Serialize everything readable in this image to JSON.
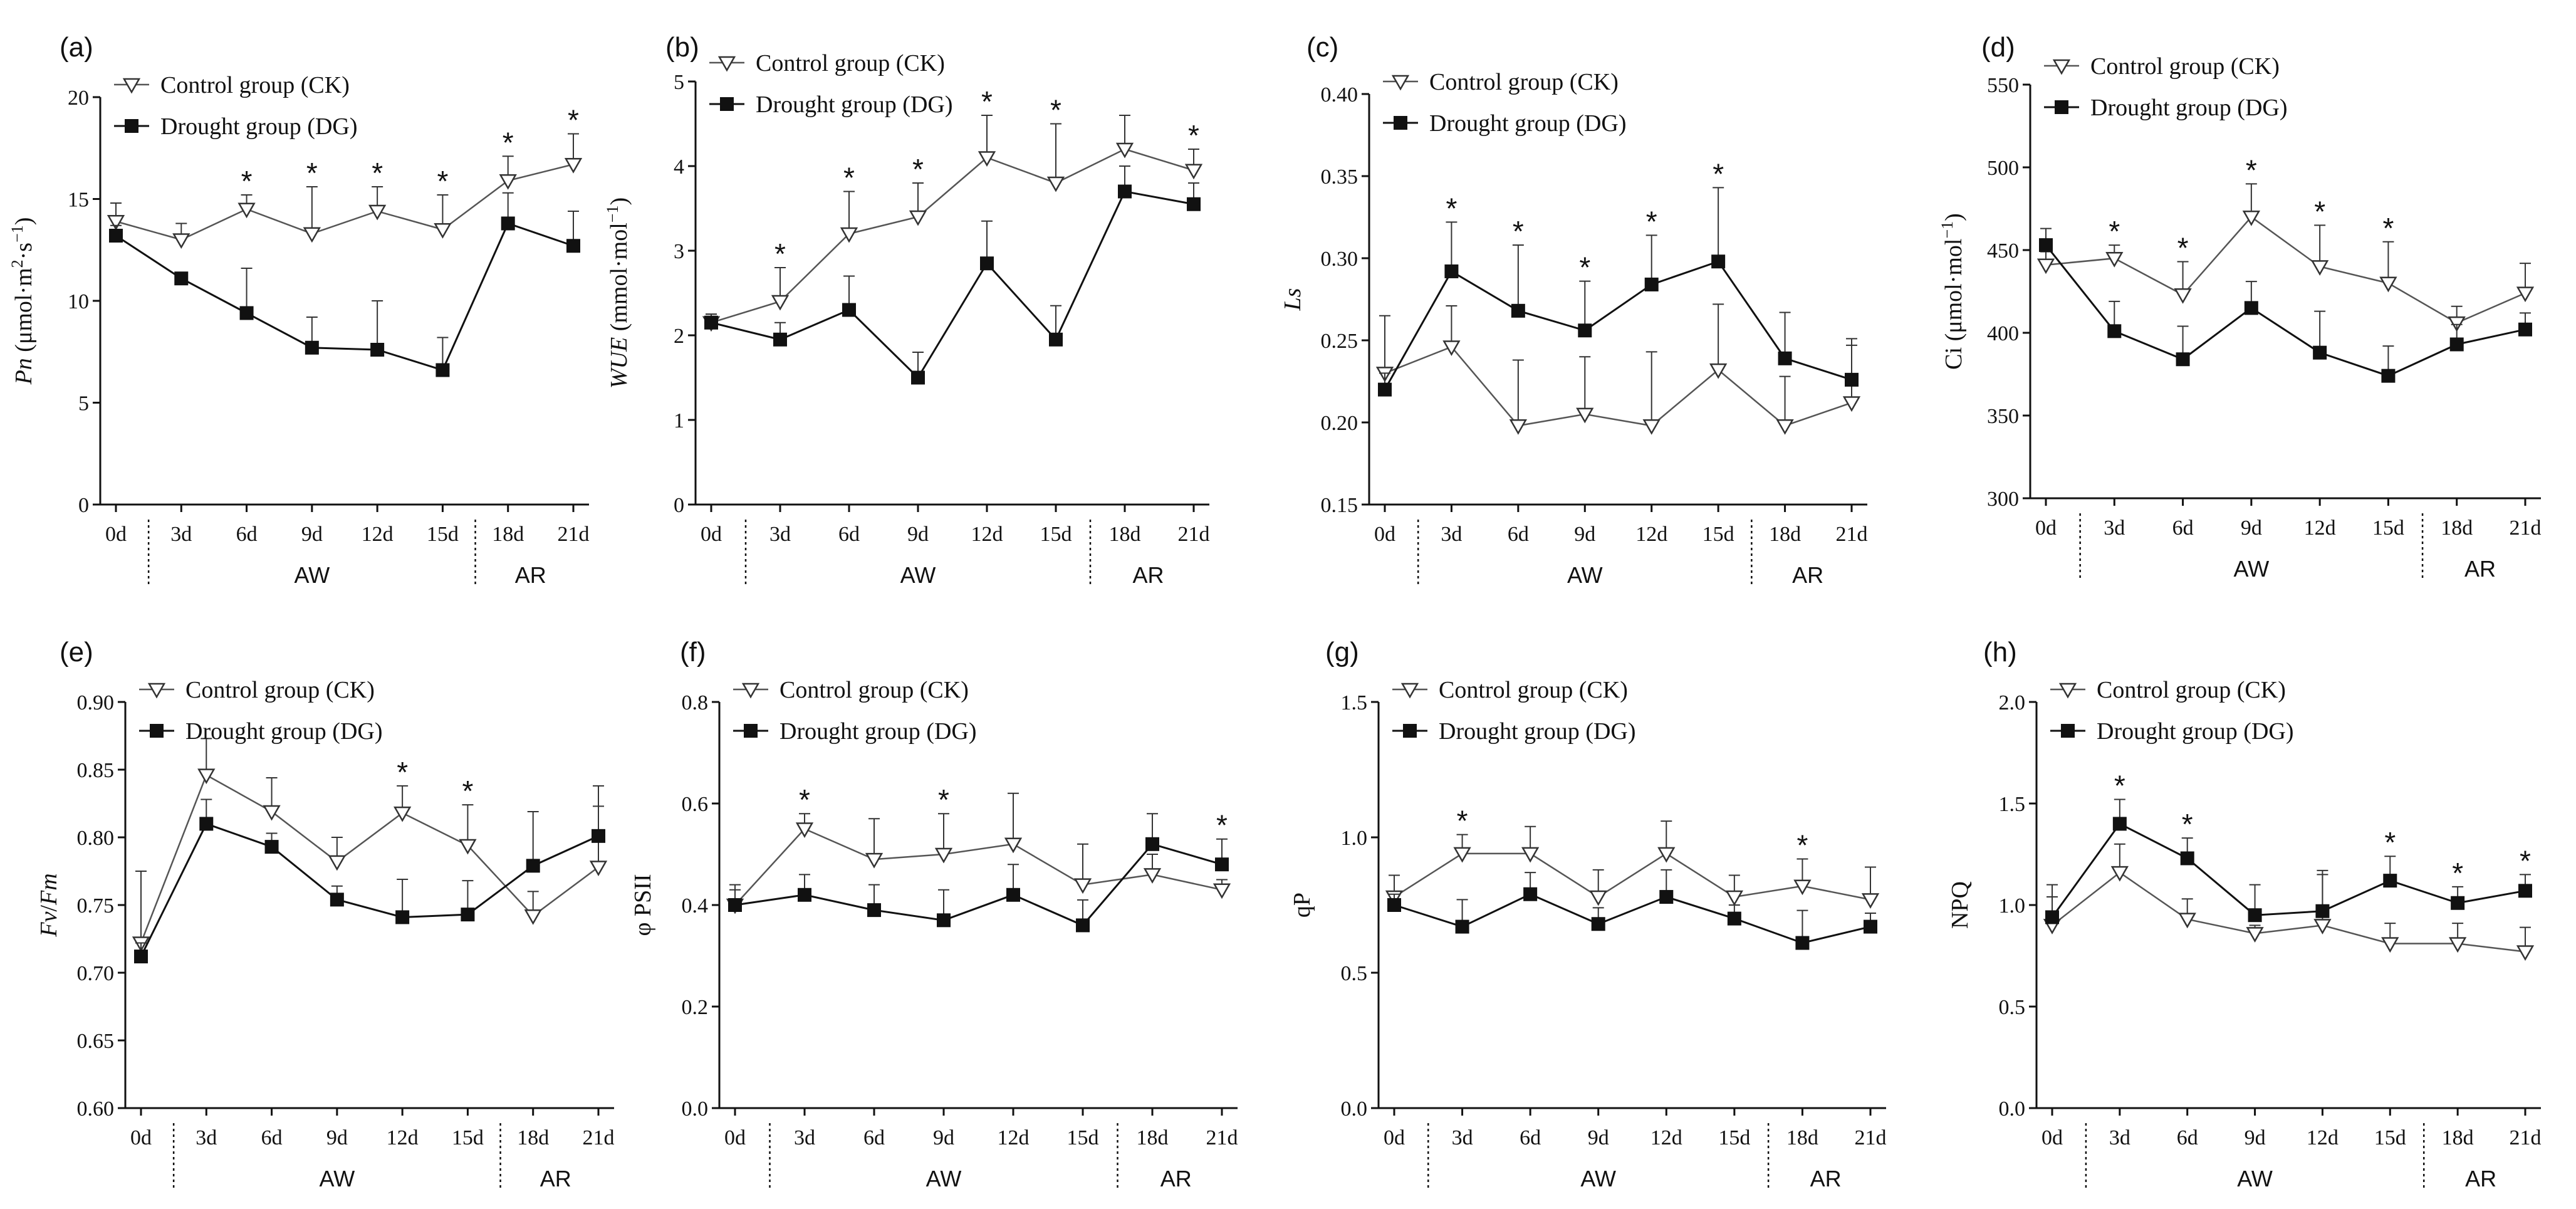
{
  "chart_data": [
    {
      "type": "line",
      "panel": "(a)",
      "ylabel_parts": [
        "Pn",
        " (μmol·m",
        "2",
        "·s",
        "−1",
        ")"
      ],
      "ylabel_italic": [
        true,
        false,
        false,
        false,
        false,
        false
      ],
      "ylabel_sup": [
        false,
        false,
        true,
        false,
        true,
        false
      ],
      "ylim": [
        0,
        20
      ],
      "yticks": [
        0,
        5,
        10,
        15,
        20
      ],
      "ytick_labels": [
        "0",
        "5",
        "10",
        "15",
        "20"
      ],
      "categories": [
        "0d",
        "3d",
        "6d",
        "9d",
        "12d",
        "15d",
        "18d",
        "21d"
      ],
      "phases": [
        "AW",
        "AR"
      ],
      "legend": [
        "Control group (CK)",
        "Drought group (DG)"
      ],
      "series": [
        {
          "name": "Control group (CK)",
          "values": [
            13.9,
            13.0,
            14.5,
            13.3,
            14.4,
            13.5,
            15.9,
            16.7
          ],
          "err": [
            0.9,
            0.8,
            0.7,
            2.3,
            1.2,
            1.7,
            1.2,
            1.5
          ]
        },
        {
          "name": "Drought group (DG)",
          "values": [
            13.2,
            11.1,
            9.4,
            7.7,
            7.6,
            6.6,
            13.8,
            12.7
          ],
          "err": [
            0.5,
            0.3,
            2.2,
            1.5,
            2.4,
            1.6,
            1.5,
            1.7
          ]
        }
      ],
      "stars": [
        2,
        3,
        4,
        5,
        6,
        7
      ]
    },
    {
      "type": "line",
      "panel": "(b)",
      "ylabel_parts": [
        "WUE",
        " (mmol·mol",
        "−1",
        ")"
      ],
      "ylabel_italic": [
        true,
        false,
        false,
        false
      ],
      "ylabel_sup": [
        false,
        false,
        true,
        false
      ],
      "ylim": [
        0,
        5
      ],
      "yticks": [
        0,
        1,
        2,
        3,
        4,
        5
      ],
      "ytick_labels": [
        "0",
        "1",
        "2",
        "3",
        "4",
        "5"
      ],
      "categories": [
        "0d",
        "3d",
        "6d",
        "9d",
        "12d",
        "15d",
        "18d",
        "21d"
      ],
      "phases": [
        "AW",
        "AR"
      ],
      "legend": [
        "Control group (CK)",
        "Drought group (DG)"
      ],
      "series": [
        {
          "name": "Control group (CK)",
          "values": [
            2.15,
            2.4,
            3.2,
            3.4,
            4.1,
            3.8,
            4.2,
            3.95
          ],
          "err": [
            0.1,
            0.4,
            0.5,
            0.4,
            0.5,
            0.7,
            0.4,
            0.25
          ]
        },
        {
          "name": "Drought group (DG)",
          "values": [
            2.15,
            1.95,
            2.3,
            1.5,
            2.85,
            1.95,
            3.7,
            3.55
          ],
          "err": [
            0.1,
            0.2,
            0.4,
            0.3,
            0.5,
            0.4,
            0.3,
            0.25
          ]
        }
      ],
      "stars": [
        1,
        2,
        3,
        4,
        5,
        7
      ]
    },
    {
      "type": "line",
      "panel": "(c)",
      "ylabel_parts": [
        "Ls"
      ],
      "ylabel_italic": [
        true
      ],
      "ylabel_sup": [
        false
      ],
      "ylim": [
        0.15,
        0.4
      ],
      "yticks": [
        0.15,
        0.2,
        0.25,
        0.3,
        0.35,
        0.4
      ],
      "ytick_labels": [
        "0.15",
        "0.20",
        "0.25",
        "0.30",
        "0.35",
        "0.40"
      ],
      "categories": [
        "0d",
        "3d",
        "6d",
        "9d",
        "12d",
        "15d",
        "18d",
        "21d"
      ],
      "phases": [
        "AW",
        "AR"
      ],
      "legend": [
        "Control group (CK)",
        "Drought group (DG)"
      ],
      "series": [
        {
          "name": "Control group (CK)",
          "values": [
            0.23,
            0.246,
            0.198,
            0.205,
            0.198,
            0.232,
            0.198,
            0.212
          ],
          "err": [
            0.035,
            0.025,
            0.04,
            0.035,
            0.045,
            0.04,
            0.03,
            0.035
          ]
        },
        {
          "name": "Drought group (DG)",
          "values": [
            0.22,
            0.292,
            0.268,
            0.256,
            0.284,
            0.298,
            0.239,
            0.226
          ],
          "err": [
            0.01,
            0.03,
            0.04,
            0.03,
            0.03,
            0.045,
            0.028,
            0.025
          ]
        }
      ],
      "stars": [
        1,
        2,
        3,
        4,
        5
      ]
    },
    {
      "type": "line",
      "panel": "(d)",
      "ylabel_parts": [
        "Ci (μmol·mol",
        "−1",
        ")"
      ],
      "ylabel_italic": [
        false,
        false,
        false
      ],
      "ylabel_sup": [
        false,
        true,
        false
      ],
      "ylim": [
        300,
        550
      ],
      "yticks": [
        300,
        350,
        400,
        450,
        500,
        550
      ],
      "ytick_labels": [
        "300",
        "350",
        "400",
        "450",
        "500",
        "550"
      ],
      "categories": [
        "0d",
        "3d",
        "6d",
        "9d",
        "12d",
        "15d",
        "18d",
        "21d"
      ],
      "phases": [
        "AW",
        "AR"
      ],
      "legend": [
        "Control group (CK)",
        "Drought group (DG)"
      ],
      "series": [
        {
          "name": "Control group (CK)",
          "values": [
            441,
            445,
            423,
            470,
            440,
            430,
            406,
            424
          ],
          "err": [
            8,
            8,
            20,
            20,
            25,
            25,
            10,
            18
          ]
        },
        {
          "name": "Drought group (DG)",
          "values": [
            453,
            401,
            384,
            415,
            388,
            374,
            393,
            402
          ],
          "err": [
            10,
            18,
            20,
            16,
            25,
            18,
            12,
            10
          ]
        }
      ],
      "stars": [
        1,
        2,
        3,
        4,
        5
      ]
    },
    {
      "type": "line",
      "panel": "(e)",
      "ylabel_parts": [
        "Fv",
        "/",
        "Fm"
      ],
      "ylabel_italic": [
        true,
        false,
        true
      ],
      "ylabel_sup": [
        false,
        false,
        false
      ],
      "ylim": [
        0.6,
        0.9
      ],
      "yticks": [
        0.6,
        0.65,
        0.7,
        0.75,
        0.8,
        0.85,
        0.9
      ],
      "ytick_labels": [
        "0.60",
        "0.65",
        "0.70",
        "0.75",
        "0.80",
        "0.85",
        "0.90"
      ],
      "categories": [
        "0d",
        "3d",
        "6d",
        "9d",
        "12d",
        "15d",
        "18d",
        "21d"
      ],
      "phases": [
        "AW",
        "AR"
      ],
      "legend": [
        "Control group (CK)",
        "Drought group (DG)"
      ],
      "series": [
        {
          "name": "Control group (CK)",
          "values": [
            0.722,
            0.846,
            0.819,
            0.782,
            0.818,
            0.794,
            0.742,
            0.778
          ],
          "err": [
            0.053,
            0.027,
            0.025,
            0.018,
            0.02,
            0.03,
            0.018,
            0.06
          ]
        },
        {
          "name": "Drought group (DG)",
          "values": [
            0.712,
            0.81,
            0.793,
            0.754,
            0.741,
            0.743,
            0.779,
            0.801
          ],
          "err": [
            0.01,
            0.018,
            0.01,
            0.01,
            0.028,
            0.025,
            0.04,
            0.022
          ]
        }
      ],
      "stars": [
        4,
        5
      ]
    },
    {
      "type": "line",
      "panel": "(f)",
      "ylabel_parts": [
        "φ PSII"
      ],
      "ylabel_italic": [
        false
      ],
      "ylabel_sup": [
        false
      ],
      "ylim": [
        0.0,
        0.8
      ],
      "yticks": [
        0.0,
        0.2,
        0.4,
        0.6,
        0.8
      ],
      "ytick_labels": [
        "0.0",
        "0.2",
        "0.4",
        "0.6",
        "0.8"
      ],
      "categories": [
        "0d",
        "3d",
        "6d",
        "9d",
        "12d",
        "15d",
        "18d",
        "21d"
      ],
      "phases": [
        "AW",
        "AR"
      ],
      "legend": [
        "Control group (CK)",
        "Drought group (DG)"
      ],
      "series": [
        {
          "name": "Control group (CK)",
          "values": [
            0.4,
            0.55,
            0.49,
            0.5,
            0.52,
            0.44,
            0.46,
            0.43
          ],
          "err": [
            0.04,
            0.03,
            0.08,
            0.08,
            0.1,
            0.08,
            0.04,
            0.02
          ]
        },
        {
          "name": "Drought group (DG)",
          "values": [
            0.4,
            0.42,
            0.39,
            0.37,
            0.42,
            0.36,
            0.52,
            0.48
          ],
          "err": [
            0.03,
            0.04,
            0.05,
            0.06,
            0.06,
            0.05,
            0.06,
            0.05
          ]
        }
      ],
      "stars": [
        1,
        3,
        7
      ]
    },
    {
      "type": "line",
      "panel": "(g)",
      "ylabel_parts": [
        "qP"
      ],
      "ylabel_italic": [
        false
      ],
      "ylabel_sup": [
        false
      ],
      "ylim": [
        0.0,
        1.5
      ],
      "yticks": [
        0.0,
        0.5,
        1.0,
        1.5
      ],
      "ytick_labels": [
        "0.0",
        "0.5",
        "1.0",
        "1.5"
      ],
      "categories": [
        "0d",
        "3d",
        "6d",
        "9d",
        "12d",
        "15d",
        "18d",
        "21d"
      ],
      "phases": [
        "AW",
        "AR"
      ],
      "legend": [
        "Control group (CK)",
        "Drought group (DG)"
      ],
      "series": [
        {
          "name": "Control group (CK)",
          "values": [
            0.78,
            0.94,
            0.94,
            0.78,
            0.94,
            0.78,
            0.82,
            0.77
          ],
          "err": [
            0.08,
            0.07,
            0.1,
            0.1,
            0.12,
            0.08,
            0.1,
            0.12
          ]
        },
        {
          "name": "Drought group (DG)",
          "values": [
            0.75,
            0.67,
            0.79,
            0.68,
            0.78,
            0.7,
            0.61,
            0.67
          ],
          "err": [
            0.04,
            0.1,
            0.08,
            0.06,
            0.1,
            0.05,
            0.12,
            0.05
          ]
        }
      ],
      "stars": [
        1,
        6
      ]
    },
    {
      "type": "line",
      "panel": "(h)",
      "ylabel_parts": [
        "NPQ"
      ],
      "ylabel_italic": [
        false
      ],
      "ylabel_sup": [
        false
      ],
      "ylim": [
        0.0,
        2.0
      ],
      "yticks": [
        0.0,
        0.5,
        1.0,
        1.5,
        2.0
      ],
      "ytick_labels": [
        "0.0",
        "0.5",
        "1.0",
        "1.5",
        "2.0"
      ],
      "categories": [
        "0d",
        "3d",
        "6d",
        "9d",
        "12d",
        "15d",
        "18d",
        "21d"
      ],
      "phases": [
        "AW",
        "AR"
      ],
      "legend": [
        "Control group (CK)",
        "Drought group (DG)"
      ],
      "series": [
        {
          "name": "Control group (CK)",
          "values": [
            0.9,
            1.16,
            0.93,
            0.86,
            0.9,
            0.81,
            0.81,
            0.77
          ],
          "err": [
            0.2,
            0.14,
            0.1,
            0.04,
            0.25,
            0.1,
            0.1,
            0.12
          ]
        },
        {
          "name": "Drought group (DG)",
          "values": [
            0.94,
            1.4,
            1.23,
            0.95,
            0.97,
            1.12,
            1.01,
            1.07
          ],
          "err": [
            0.1,
            0.12,
            0.1,
            0.15,
            0.2,
            0.12,
            0.08,
            0.08
          ]
        }
      ],
      "stars": [
        1,
        2,
        5,
        6,
        7
      ]
    }
  ]
}
